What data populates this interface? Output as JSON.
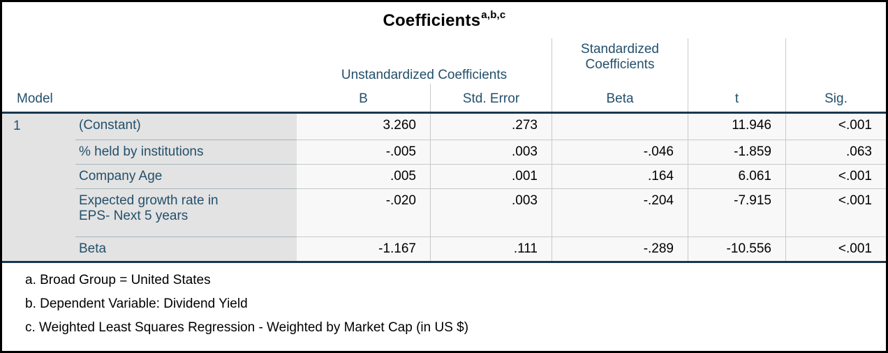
{
  "table": {
    "title": "Coefficients",
    "title_superscript": "a,b,c",
    "header": {
      "model": "Model",
      "unstandardized_group": "Unstandardized Coefficients",
      "standardized_group_line1": "Standardized",
      "standardized_group_line2": "Coefficients",
      "col_b": "B",
      "col_std_error": "Std. Error",
      "col_beta": "Beta",
      "col_t": "t",
      "col_sig": "Sig."
    },
    "model_number": "1",
    "rows": [
      {
        "label": "(Constant)",
        "b": "3.260",
        "std_error": ".273",
        "beta": "",
        "t": "11.946",
        "sig": "<.001"
      },
      {
        "label": "% held by institutions",
        "b": "-.005",
        "std_error": ".003",
        "beta": "-.046",
        "t": "-1.859",
        "sig": ".063"
      },
      {
        "label": "Company Age",
        "b": ".005",
        "std_error": ".001",
        "beta": ".164",
        "t": "6.061",
        "sig": "<.001"
      },
      {
        "label": "Expected growth rate in EPS- Next 5 years",
        "b": "-.020",
        "std_error": ".003",
        "beta": "-.204",
        "t": "-7.915",
        "sig": "<.001"
      },
      {
        "label": "Beta",
        "b": "-1.167",
        "std_error": ".111",
        "beta": "-.289",
        "t": "-10.556",
        "sig": "<.001"
      }
    ],
    "footnotes": [
      "a. Broad Group = United States",
      "b. Dependent Variable: Dividend Yield",
      "c. Weighted Least Squares Regression - Weighted by Market Cap (in US $)"
    ],
    "colors": {
      "header_text": "#23506B",
      "label_background": "#E3E3E3",
      "value_cell_background": "#F8F8F8",
      "thick_rule": "#17384F",
      "outer_border": "#000000"
    }
  }
}
